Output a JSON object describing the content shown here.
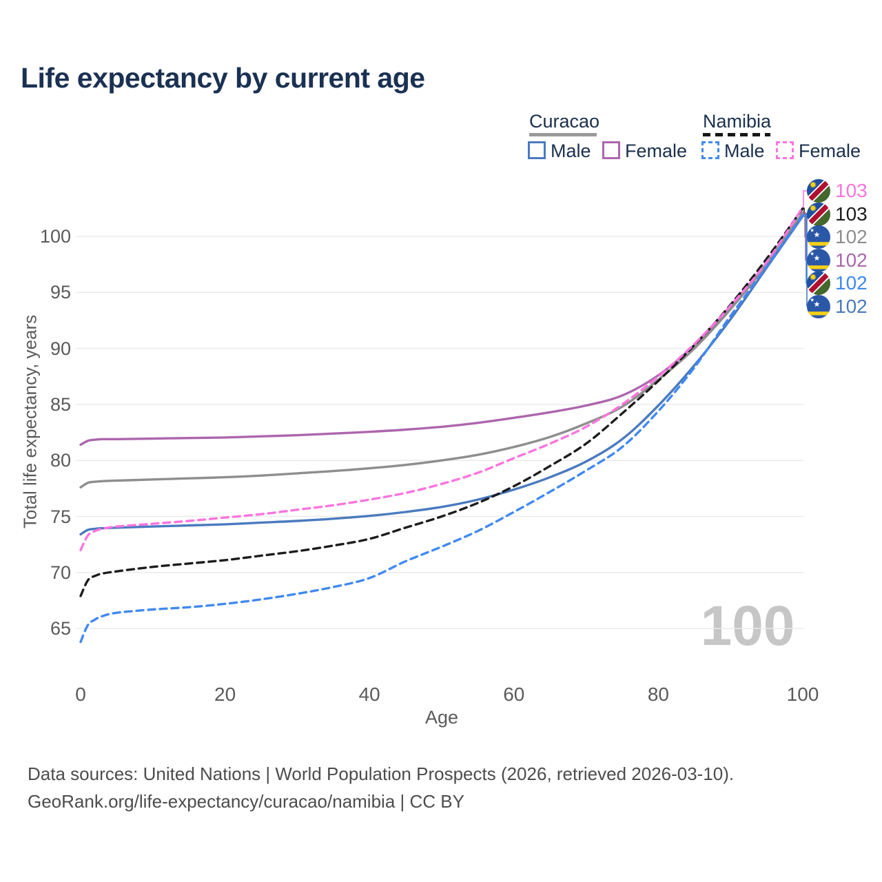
{
  "title": "Life expectancy by current age",
  "legend": {
    "groups": [
      {
        "title": "Curacao",
        "rule_color": "#9a9a9a",
        "rule_dashed": false,
        "items": [
          {
            "label": "Male",
            "color": "#4a7abf",
            "dash": false
          },
          {
            "label": "Female",
            "color": "#ad66ad",
            "dash": false
          }
        ]
      },
      {
        "title": "Namibia",
        "rule_color": "#161616",
        "rule_dashed": true,
        "items": [
          {
            "label": "Male",
            "color": "#4189f0",
            "dash": true
          },
          {
            "label": "Female",
            "color": "#fb74df",
            "dash": true
          }
        ]
      }
    ]
  },
  "watermark": "100",
  "footer": {
    "line1": "Data sources: United Nations | World Population Prospects (2026, retrieved 2026-03-10).",
    "line2": "GeoRank.org/life-expectancy/curacao/namibia | CC BY"
  },
  "chart_data": {
    "type": "line",
    "title": "Life expectancy by current age",
    "xlabel": "Age",
    "ylabel": "Total life expectancy, years",
    "xlim": [
      0,
      100
    ],
    "ylim": [
      62,
      104
    ],
    "xticks": [
      0,
      20,
      40,
      60,
      80,
      100
    ],
    "yticks": [
      65,
      70,
      75,
      80,
      85,
      90,
      95,
      100
    ],
    "grid": "horizontal",
    "gridline_color": "#ebebeb",
    "legend_position": "top-right",
    "x": [
      0,
      1,
      2,
      3,
      5,
      10,
      15,
      20,
      25,
      30,
      35,
      40,
      45,
      50,
      55,
      60,
      65,
      70,
      75,
      80,
      85,
      90,
      95,
      100
    ],
    "series": [
      {
        "key": "curacao_female",
        "name": "Curacao Female",
        "color": "#ad66ad",
        "dash": false,
        "values": [
          81.4,
          81.75,
          81.85,
          81.9,
          81.9,
          81.95,
          82.0,
          82.05,
          82.15,
          82.25,
          82.4,
          82.55,
          82.75,
          83.0,
          83.35,
          83.8,
          84.3,
          84.9,
          85.8,
          87.6,
          90.3,
          93.7,
          97.6,
          102.1
        ]
      },
      {
        "key": "curacao_total",
        "name": "Curacao (both sexes)",
        "color": "#8e8e8e",
        "dash": false,
        "values": [
          77.6,
          78.0,
          78.1,
          78.15,
          78.2,
          78.3,
          78.4,
          78.5,
          78.65,
          78.85,
          79.05,
          79.3,
          79.6,
          80.0,
          80.5,
          81.2,
          82.1,
          83.3,
          84.8,
          87.2,
          90.0,
          93.5,
          97.5,
          102.1
        ]
      },
      {
        "key": "curacao_male",
        "name": "Curacao Male",
        "color": "#4a7abf",
        "dash": false,
        "values": [
          73.4,
          73.8,
          73.9,
          73.95,
          74.0,
          74.1,
          74.2,
          74.3,
          74.45,
          74.6,
          74.8,
          75.05,
          75.4,
          75.85,
          76.5,
          77.4,
          78.5,
          79.9,
          81.9,
          84.9,
          88.5,
          92.6,
          97.2,
          101.8
        ]
      },
      {
        "key": "namibia_male",
        "name": "Namibia Male",
        "color": "#4189f0",
        "dash": true,
        "values": [
          63.8,
          65.3,
          65.8,
          66.1,
          66.4,
          66.7,
          66.9,
          67.2,
          67.6,
          68.1,
          68.7,
          69.5,
          71.0,
          72.3,
          73.7,
          75.4,
          77.2,
          79.1,
          81.2,
          84.4,
          88.3,
          92.9,
          97.3,
          101.9
        ]
      },
      {
        "key": "namibia_total",
        "name": "Namibia (both sexes)",
        "color": "#1c1c1c",
        "dash": true,
        "values": [
          67.9,
          69.3,
          69.7,
          69.9,
          70.1,
          70.5,
          70.8,
          71.1,
          71.5,
          71.9,
          72.4,
          73.0,
          74.0,
          75.0,
          76.2,
          77.7,
          79.5,
          81.5,
          84.2,
          87.1,
          90.3,
          93.9,
          98.0,
          102.5
        ]
      },
      {
        "key": "namibia_female",
        "name": "Namibia Female",
        "color": "#fb74df",
        "dash": true,
        "values": [
          72.0,
          73.3,
          73.7,
          73.9,
          74.1,
          74.35,
          74.6,
          74.9,
          75.2,
          75.6,
          76.0,
          76.5,
          77.1,
          77.9,
          78.9,
          80.2,
          81.5,
          83.0,
          85.0,
          87.5,
          90.4,
          93.8,
          97.7,
          102.6
        ]
      }
    ],
    "end_labels": [
      {
        "series_key": "namibia_female",
        "label": "103",
        "flag": "namibia"
      },
      {
        "series_key": "namibia_total",
        "label": "103",
        "flag": "namibia"
      },
      {
        "series_key": "curacao_total",
        "label": "102",
        "flag": "curacao"
      },
      {
        "series_key": "curacao_female",
        "label": "102",
        "flag": "curacao"
      },
      {
        "series_key": "namibia_male",
        "label": "102",
        "flag": "namibia"
      },
      {
        "series_key": "curacao_male",
        "label": "102",
        "flag": "curacao"
      }
    ]
  }
}
